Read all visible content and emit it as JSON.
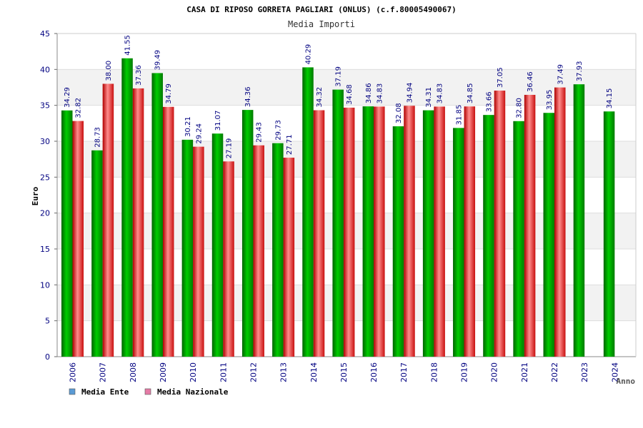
{
  "chart_data": {
    "type": "bar",
    "title": "CASA DI RIPOSO GORRETA PAGLIARI (ONLUS) (c.f.80005490067)",
    "subtitle": "Media Importi",
    "ylabel": "Euro",
    "xlabel": "Anno",
    "ylim": [
      0,
      45
    ],
    "yticks": [
      0,
      5,
      10,
      15,
      20,
      25,
      30,
      35,
      40,
      45
    ],
    "categories": [
      "2006",
      "2007",
      "2008",
      "2009",
      "2010",
      "2011",
      "2012",
      "2013",
      "2014",
      "2015",
      "2016",
      "2017",
      "2018",
      "2019",
      "2020",
      "2021",
      "2022",
      "2023",
      "2024"
    ],
    "series": [
      {
        "name": "Media Ente",
        "values": [
          34.29,
          28.73,
          41.55,
          39.49,
          30.21,
          31.07,
          34.36,
          29.73,
          40.29,
          37.19,
          34.86,
          32.08,
          34.31,
          31.85,
          33.66,
          32.8,
          33.95,
          37.93,
          34.15
        ],
        "labels": [
          "34.29",
          "28.73",
          "41.55",
          "39.49",
          "30.21",
          "31.07",
          "34.36",
          "29.73",
          "40.29",
          "37.19",
          "34.86",
          "32.08",
          "34.31",
          "31.85",
          "33.66",
          "32.80",
          "33.95",
          "37.93",
          "34.15"
        ]
      },
      {
        "name": "Media Nazionale",
        "values": [
          32.82,
          38.0,
          37.36,
          34.79,
          29.24,
          27.19,
          29.43,
          27.71,
          34.32,
          34.68,
          34.83,
          34.94,
          34.83,
          34.85,
          37.05,
          36.46,
          37.49,
          null,
          null
        ],
        "labels": [
          "32.82",
          "38.00",
          "37.36",
          "34.79",
          "29.24",
          "27.19",
          "29.43",
          "27.71",
          "34.32",
          "34.68",
          "34.83",
          "34.94",
          "34.83",
          "34.85",
          "37.05",
          "36.46",
          "37.49",
          "",
          ""
        ]
      }
    ],
    "legend": {
      "placement": "bottom-left",
      "colors": [
        "#5b9bd5",
        "#e57ba6"
      ]
    },
    "bar_colors": {
      "ente": {
        "dark": "#006400",
        "light": "#00cc00"
      },
      "nazionale": {
        "dark": "#b00000",
        "light": "#ff8c8c"
      }
    },
    "grid": true,
    "grid_band_color": "#f2f2f2"
  }
}
